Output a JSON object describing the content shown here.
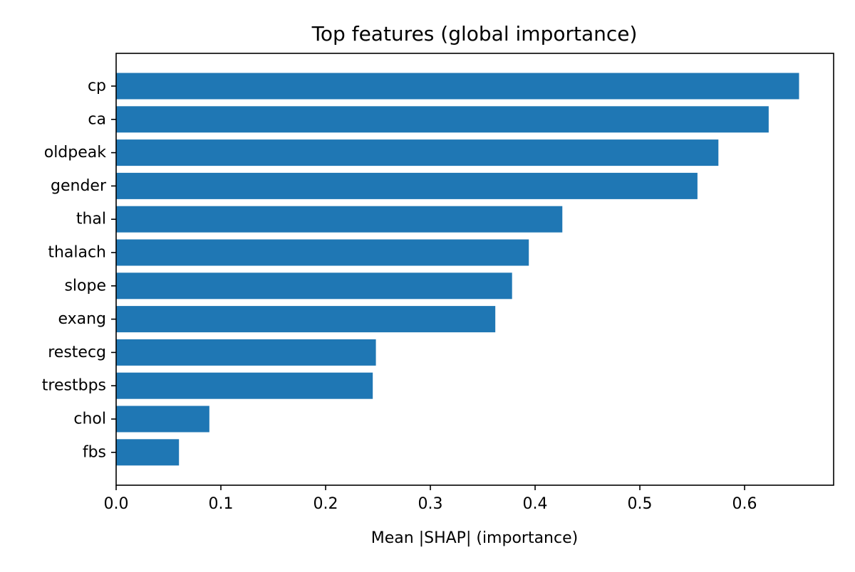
{
  "chart_data": {
    "type": "bar",
    "orientation": "horizontal",
    "title": "Top features (global importance)",
    "xlabel": "Mean |SHAP| (importance)",
    "ylabel": "",
    "categories": [
      "cp",
      "ca",
      "oldpeak",
      "gender",
      "thal",
      "thalach",
      "slope",
      "exang",
      "restecg",
      "trestbps",
      "chol",
      "fbs"
    ],
    "values": [
      0.652,
      0.623,
      0.575,
      0.555,
      0.426,
      0.394,
      0.378,
      0.362,
      0.248,
      0.245,
      0.089,
      0.06
    ],
    "xlim": [
      0,
      0.685
    ],
    "xticks": [
      0.0,
      0.1,
      0.2,
      0.3,
      0.4,
      0.5,
      0.6
    ],
    "xtick_labels": [
      "0.0",
      "0.1",
      "0.2",
      "0.3",
      "0.4",
      "0.5",
      "0.6"
    ],
    "grid": false,
    "legend": "none",
    "bar_color": "#1f77b4"
  }
}
